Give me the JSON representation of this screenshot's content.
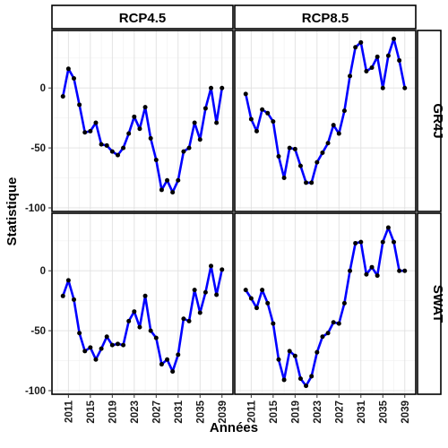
{
  "chart_data": {
    "type": "line",
    "xlabel": "Années",
    "ylabel": "Statistique",
    "xlim": [
      2008,
      2041
    ],
    "ylim": [
      -103,
      48
    ],
    "x_ticks": [
      2011,
      2015,
      2019,
      2023,
      2027,
      2031,
      2035,
      2039
    ],
    "y_ticks": [
      -100,
      -50,
      0
    ],
    "grid": true,
    "line_color": "#0000ff",
    "point_color": "#000000",
    "column_facets": [
      "RCP4.5",
      "RCP8.5"
    ],
    "row_facets": [
      "GR4J",
      "SWAT"
    ],
    "x": [
      2010,
      2011,
      2012,
      2013,
      2014,
      2015,
      2016,
      2017,
      2018,
      2019,
      2020,
      2021,
      2022,
      2023,
      2024,
      2025,
      2026,
      2027,
      2028,
      2029,
      2030,
      2031,
      2032,
      2033,
      2034,
      2035,
      2036,
      2037,
      2038,
      2039
    ],
    "panels": [
      {
        "row": "GR4J",
        "col": "RCP4.5",
        "values": [
          -7,
          16,
          8,
          -14,
          -37,
          -36,
          -29,
          -47,
          -48,
          -53,
          -56,
          -50,
          -38,
          -24,
          -34,
          -16,
          -42,
          -60,
          -85,
          -77,
          -87,
          -77,
          -53,
          -50,
          -29,
          -43,
          -17,
          0,
          -29,
          0
        ]
      },
      {
        "row": "GR4J",
        "col": "RCP8.5",
        "values": [
          -5,
          -26,
          -36,
          -18,
          -21,
          -28,
          -57,
          -75,
          -50,
          -51,
          -65,
          -79,
          -79,
          -62,
          -54,
          -46,
          -31,
          -38,
          -19,
          10,
          34,
          38,
          14,
          17,
          26,
          0,
          27,
          41,
          23,
          0
        ]
      },
      {
        "row": "SWAT",
        "col": "RCP4.5",
        "values": [
          -21,
          -8,
          -24,
          -52,
          -67,
          -64,
          -74,
          -65,
          -55,
          -62,
          -61,
          -62,
          -42,
          -34,
          -47,
          -21,
          -50,
          -56,
          -78,
          -74,
          -84,
          -70,
          -40,
          -42,
          -16,
          -35,
          -18,
          4,
          -20,
          1
        ]
      },
      {
        "row": "SWAT",
        "col": "RCP8.5",
        "values": [
          -16,
          -23,
          -31,
          -16,
          -27,
          -44,
          -74,
          -91,
          -67,
          -71,
          -90,
          -96,
          -88,
          -68,
          -55,
          -52,
          -43,
          -44,
          -27,
          0,
          23,
          24,
          -3,
          3,
          -4,
          24,
          36,
          24,
          0,
          0
        ]
      }
    ]
  }
}
